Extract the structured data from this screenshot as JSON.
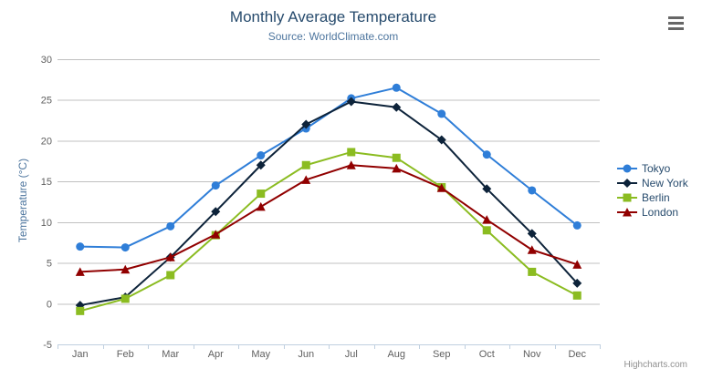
{
  "header": {
    "title": "Monthly Average Temperature",
    "subtitle": "Source: WorldClimate.com"
  },
  "credits_label": "Highcharts.com",
  "export_menu": {
    "icon": "hamburger-icon"
  },
  "chart_data": {
    "type": "line",
    "title": "Monthly Average Temperature",
    "subtitle": "Source: WorldClimate.com",
    "xlabel": "",
    "ylabel": "Temperature (°C)",
    "ylim": [
      -5,
      30
    ],
    "yticks": [
      -5,
      0,
      5,
      10,
      15,
      20,
      25,
      30
    ],
    "grid": true,
    "legend_position": "right-middle",
    "categories": [
      "Jan",
      "Feb",
      "Mar",
      "Apr",
      "May",
      "Jun",
      "Jul",
      "Aug",
      "Sep",
      "Oct",
      "Nov",
      "Dec"
    ],
    "series": [
      {
        "name": "Tokyo",
        "color": "#2f7ed8",
        "marker": "circle",
        "values": [
          7.0,
          6.9,
          9.5,
          14.5,
          18.2,
          21.5,
          25.2,
          26.5,
          23.3,
          18.3,
          13.9,
          9.6
        ]
      },
      {
        "name": "New York",
        "color": "#0d233a",
        "marker": "diamond",
        "values": [
          -0.2,
          0.8,
          5.7,
          11.3,
          17.0,
          22.0,
          24.8,
          24.1,
          20.1,
          14.1,
          8.6,
          2.5
        ]
      },
      {
        "name": "Berlin",
        "color": "#8bbc21",
        "marker": "square",
        "values": [
          -0.9,
          0.6,
          3.5,
          8.4,
          13.5,
          17.0,
          18.6,
          17.9,
          14.3,
          9.0,
          3.9,
          1.0
        ]
      },
      {
        "name": "London",
        "color": "#910000",
        "marker": "triangle",
        "values": [
          3.9,
          4.2,
          5.7,
          8.5,
          11.9,
          15.2,
          17.0,
          16.6,
          14.2,
          10.3,
          6.6,
          4.8
        ]
      }
    ],
    "style_colors": {
      "title": "#274b6d",
      "subtitle": "#4d759e",
      "axis_title": "#4d759e",
      "tick_label": "#606060",
      "gridline": "#c0c0c0",
      "axis_line": "#c0d0e0",
      "legend_text": "#274b6d",
      "credits": "#909090"
    }
  }
}
